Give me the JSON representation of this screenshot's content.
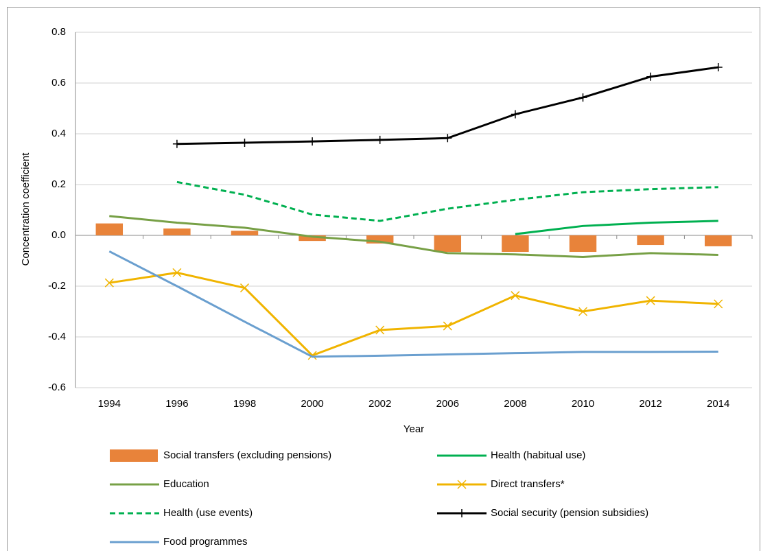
{
  "chart_data": {
    "type": "combo",
    "y_label": "Concentration coefficient",
    "x_label": "Year",
    "categories": [
      "1994",
      "1996",
      "1998",
      "2000",
      "2002",
      "2006",
      "2008",
      "2010",
      "2012",
      "2014"
    ],
    "ylim": [
      -0.6,
      0.8
    ],
    "yticks": [
      -0.6,
      -0.4,
      -0.2,
      {
        "value": 0,
        "label": "0.0"
      },
      0.2,
      0.4,
      0.6,
      0.8
    ],
    "grid": true,
    "legend": "bottom",
    "series": [
      {
        "name": "Social transfers (excluding pensions)",
        "type": "bar",
        "color": "#e8833a",
        "values": [
          0.047,
          0.027,
          0.018,
          -0.022,
          -0.032,
          -0.065,
          -0.065,
          -0.065,
          -0.038,
          -0.043
        ]
      },
      {
        "name": "Health (habitual use)",
        "type": "line",
        "color": "#00b050",
        "values": [
          null,
          null,
          null,
          null,
          null,
          null,
          0.005,
          0.037,
          0.05,
          0.057
        ]
      },
      {
        "name": "Education",
        "type": "line",
        "color": "#77a046",
        "values": [
          0.076,
          0.05,
          0.03,
          -0.005,
          -0.025,
          -0.07,
          -0.075,
          -0.085,
          -0.07,
          -0.077
        ]
      },
      {
        "name": "Direct transfers*",
        "type": "line",
        "color": "#f0b400",
        "marker": "x",
        "values": [
          -0.187,
          -0.147,
          -0.207,
          -0.473,
          -0.373,
          -0.357,
          -0.237,
          -0.3,
          -0.257,
          -0.27
        ]
      },
      {
        "name": "Health (use events)",
        "type": "line",
        "color": "#00b050",
        "dash": true,
        "values": [
          null,
          0.21,
          0.16,
          0.082,
          0.057,
          0.105,
          0.14,
          0.17,
          0.182,
          0.19
        ]
      },
      {
        "name": "Social security (pension subsidies)",
        "type": "line",
        "color": "#000000",
        "marker": "plus",
        "values": [
          null,
          0.36,
          0.365,
          0.37,
          0.376,
          0.383,
          0.477,
          0.543,
          0.625,
          0.662
        ]
      },
      {
        "name": "Food programmes",
        "type": "line",
        "color": "#6a9fcf",
        "values": [
          -0.063,
          -0.2,
          -0.34,
          -0.478,
          -0.474,
          -0.469,
          -0.464,
          -0.459,
          -0.459,
          -0.458
        ]
      }
    ]
  }
}
